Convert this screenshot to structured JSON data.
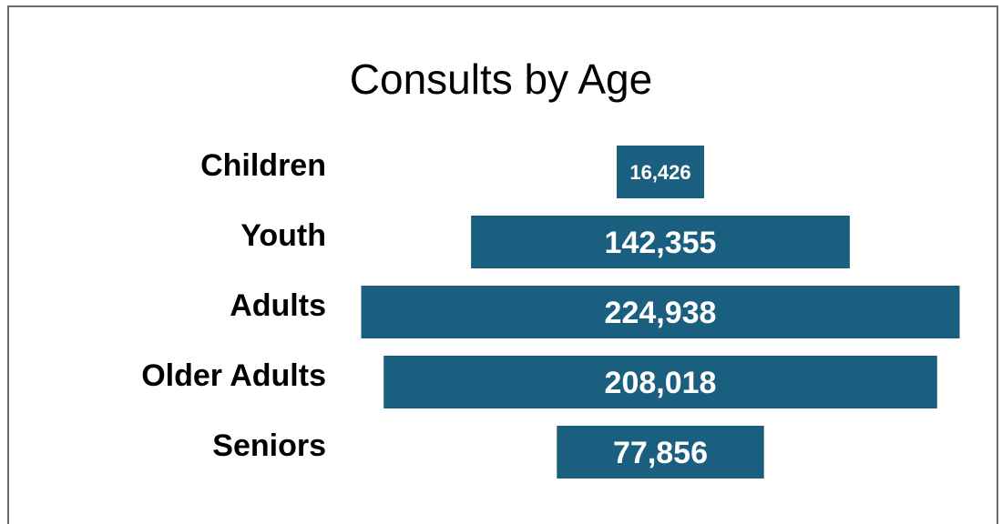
{
  "chart_data": {
    "type": "bar",
    "orientation": "horizontal-funnel",
    "title": "Consults by Age",
    "categories": [
      "Children",
      "Youth",
      "Adults",
      "Older Adults",
      "Seniors"
    ],
    "values": [
      16426,
      142355,
      224938,
      208018,
      77856
    ],
    "value_labels": [
      "16,426",
      "142,355",
      "224,938",
      "208,018",
      "77,856"
    ],
    "bar_color": "#1a5e80",
    "label_color": "#ffffff",
    "grid": false,
    "legend": "none"
  }
}
